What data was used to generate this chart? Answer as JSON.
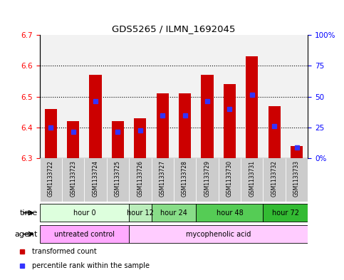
{
  "title": "GDS5265 / ILMN_1692045",
  "samples": [
    "GSM1133722",
    "GSM1133723",
    "GSM1133724",
    "GSM1133725",
    "GSM1133726",
    "GSM1133727",
    "GSM1133728",
    "GSM1133729",
    "GSM1133730",
    "GSM1133731",
    "GSM1133732",
    "GSM1133733"
  ],
  "bar_tops": [
    6.46,
    6.42,
    6.57,
    6.42,
    6.43,
    6.51,
    6.51,
    6.57,
    6.54,
    6.63,
    6.47,
    6.34
  ],
  "bar_bottom": 6.3,
  "blue_positions": [
    6.4,
    6.385,
    6.485,
    6.385,
    6.39,
    6.44,
    6.44,
    6.485,
    6.46,
    6.505,
    6.405,
    6.335
  ],
  "ylim_left": [
    6.3,
    6.7
  ],
  "ylim_right": [
    0,
    100
  ],
  "yticks_left": [
    6.3,
    6.4,
    6.5,
    6.6,
    6.7
  ],
  "yticks_right": [
    0,
    25,
    50,
    75,
    100
  ],
  "ytick_labels_right": [
    "0%",
    "25",
    "50",
    "75",
    "100%"
  ],
  "bar_color": "#cc0000",
  "blue_color": "#3333ff",
  "time_groups": [
    {
      "label": "hour 0",
      "start": 0,
      "end": 4,
      "color": "#ddffdd"
    },
    {
      "label": "hour 12",
      "start": 4,
      "end": 5,
      "color": "#bbeebb"
    },
    {
      "label": "hour 24",
      "start": 5,
      "end": 7,
      "color": "#88dd88"
    },
    {
      "label": "hour 48",
      "start": 7,
      "end": 10,
      "color": "#55cc55"
    },
    {
      "label": "hour 72",
      "start": 10,
      "end": 12,
      "color": "#33bb33"
    }
  ],
  "agent_groups": [
    {
      "label": "untreated control",
      "start": 0,
      "end": 4,
      "color": "#ffaaff"
    },
    {
      "label": "mycophenolic acid",
      "start": 4,
      "end": 12,
      "color": "#ffccff"
    }
  ],
  "legend_items": [
    {
      "label": "transformed count",
      "color": "#cc0000"
    },
    {
      "label": "percentile rank within the sample",
      "color": "#3333ff"
    }
  ],
  "sample_bg_color": "#cccccc",
  "bar_width": 0.55,
  "blue_marker_size": 4,
  "fig_width": 4.83,
  "fig_height": 3.93
}
